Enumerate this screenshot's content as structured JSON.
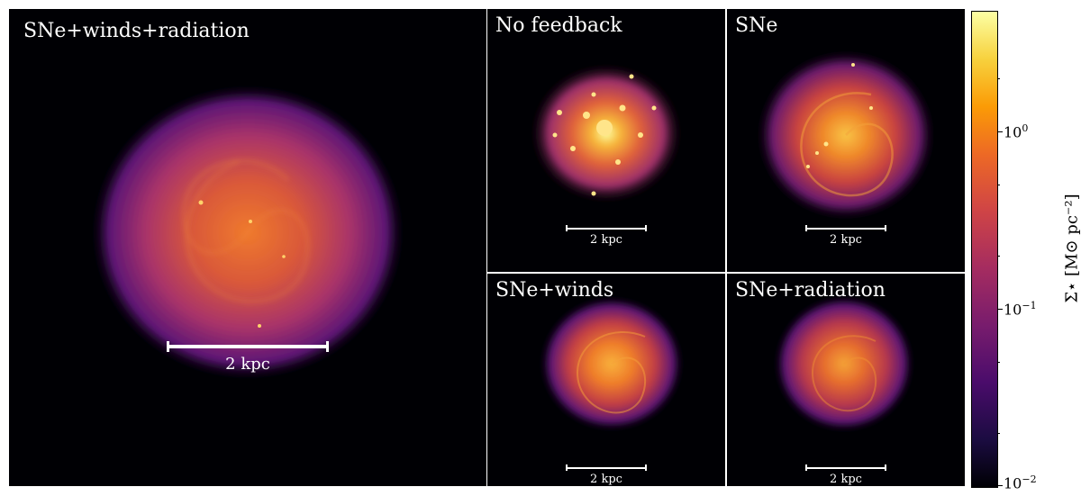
{
  "panels": [
    {
      "id": "main",
      "label": "SNe+winds+radiation",
      "scalebar": "2 kpc"
    },
    {
      "id": "nofb",
      "label": "No feedback",
      "scalebar": "2 kpc"
    },
    {
      "id": "sne",
      "label": "SNe",
      "scalebar": "2 kpc"
    },
    {
      "id": "snewinds",
      "label": "SNe+winds",
      "scalebar": "2 kpc"
    },
    {
      "id": "snerad",
      "label": "SNe+radiation",
      "scalebar": "2 kpc"
    }
  ],
  "colorbar": {
    "title": "Σ⋆ [M⊙ pc⁻²]",
    "colormap": "inferno",
    "scale": "log",
    "range": [
      0.01,
      5
    ],
    "ticks": [
      {
        "base": "10",
        "exp": "0",
        "value": 1
      },
      {
        "base": "10",
        "exp": "−1",
        "value": 0.1
      },
      {
        "base": "10",
        "exp": "−2",
        "value": 0.01
      }
    ]
  }
}
